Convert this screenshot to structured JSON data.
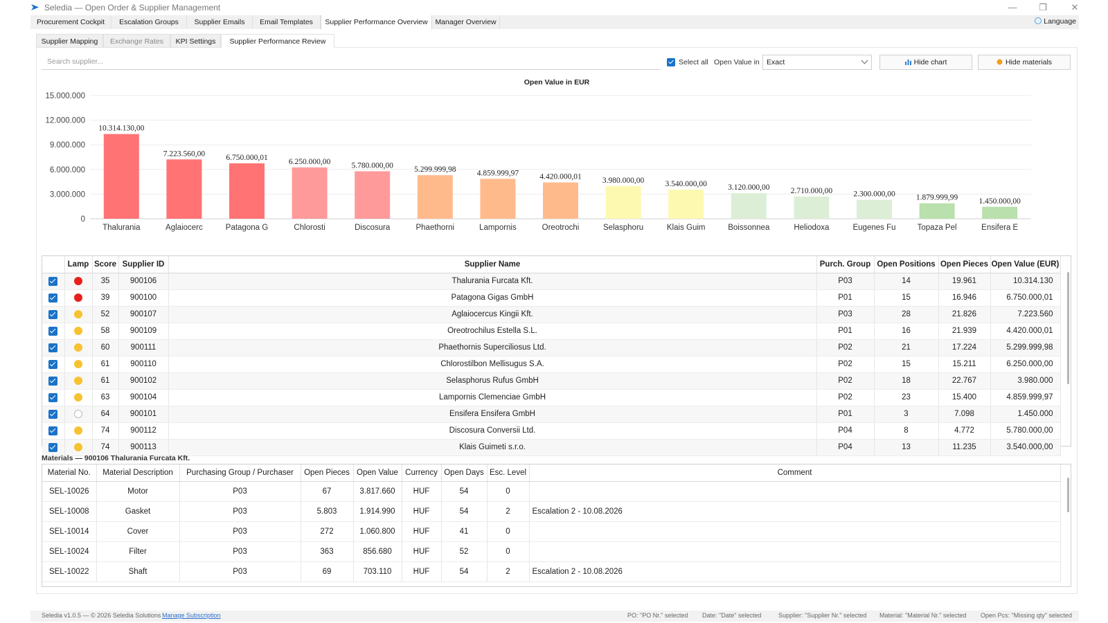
{
  "window": {
    "title": "Seledia — Open Order & Supplier Management",
    "minimize": "—",
    "maximize": "❐",
    "close": "✕",
    "colors": {
      "logo": "#1a73c9"
    }
  },
  "top_tabs": {
    "items": [
      {
        "label": "Procurement Cockpit",
        "active": false
      },
      {
        "label": "Escalation Groups",
        "active": false
      },
      {
        "label": "Supplier Emails",
        "active": false
      },
      {
        "label": "Email Templates",
        "active": false
      },
      {
        "label": "Supplier Performance Overview",
        "active": true
      },
      {
        "label": "Manager Overview",
        "active": false
      }
    ],
    "language": "Language",
    "language_icon": "globe-icon"
  },
  "sub_tabs": {
    "items": [
      {
        "label": "Supplier Mapping",
        "active": false,
        "disabled": false
      },
      {
        "label": "Exchange Rates",
        "active": false,
        "disabled": true
      },
      {
        "label": "KPI Settings",
        "active": false,
        "disabled": false
      },
      {
        "label": "Supplier Performance Review",
        "active": true,
        "disabled": false
      }
    ]
  },
  "toolbar": {
    "search_placeholder": "Search supplier...",
    "select_all": "Select all",
    "select_all_checked": true,
    "open_value_in": "Open Value in",
    "open_value_mode": "Exact",
    "hide_chart": "Hide chart",
    "hide_chart_icon": "bar-chart-icon",
    "hide_materials": "Hide materials",
    "hide_materials_icon": "box-icon"
  },
  "chart_data": {
    "type": "bar",
    "title": "Open Value in EUR",
    "xlabel": "",
    "ylabel": "",
    "ylim": [
      0,
      15000000
    ],
    "yticks": [
      0,
      3000000,
      6000000,
      9000000,
      12000000,
      15000000
    ],
    "ytick_labels": [
      "0",
      "3.000.000",
      "6.000.000",
      "9.000.000",
      "12.000.000",
      "15.000.000"
    ],
    "grid": true,
    "legend": "none",
    "categories": [
      "Thalurania",
      "Aglaiocerc",
      "Patagona G",
      "Chlorosti",
      "Discosura",
      "Phaethorni",
      "Lampornis",
      "Oreotrochi",
      "Selasphoru",
      "Klais Guim",
      "Boissonnea",
      "Heliodoxa",
      "Eugenes Fu",
      "Topaza Pel",
      "Ensifera E"
    ],
    "values": [
      10314130.0,
      7223560.0,
      6750000.01,
      6250000.0,
      5780000.0,
      5299999.98,
      4859999.97,
      4420000.01,
      3980000.0,
      3540000.0,
      3120000.0,
      2710000.0,
      2300000.0,
      1879999.99,
      1450000.0
    ],
    "value_labels": [
      "10.314.130,00",
      "7.223.560,00",
      "6.750.000,01",
      "6.250.000,00",
      "5.780.000,00",
      "5.299.999,98",
      "4.859.999,97",
      "4.420.000,01",
      "3.980.000,00",
      "3.540.000,00",
      "3.120.000,00",
      "2.710.000,00",
      "2.300.000,00",
      "1.879.999,99",
      "1.450.000,00"
    ],
    "colors": [
      "#ff7375",
      "#ff7375",
      "#ff7375",
      "#ff9a9b",
      "#ff9a9b",
      "#ffba8c",
      "#ffba8c",
      "#ffba8c",
      "#fdf9b0",
      "#fdf9b0",
      "#dcefd6",
      "#dcefd6",
      "#dcefd6",
      "#b9e0ad",
      "#b9e0ad"
    ]
  },
  "supplier_table": {
    "columns": [
      "",
      "Lamp",
      "Score",
      "Supplier ID",
      "Supplier Name",
      "Purch. Group",
      "Open Positions",
      "Open Pieces",
      "Open Value (EUR)"
    ],
    "rows": [
      {
        "checked": true,
        "lamp": "#e8201d",
        "score": "35",
        "id": "900106",
        "name": "Thalurania Furcata Kft.",
        "group": "P03",
        "positions": "14",
        "pieces": "19.961",
        "value": "10.314.130"
      },
      {
        "checked": true,
        "lamp": "#e8201d",
        "score": "39",
        "id": "900100",
        "name": "Patagona Gigas GmbH",
        "group": "P01",
        "positions": "15",
        "pieces": "16.946",
        "value": "6.750.000,01"
      },
      {
        "checked": true,
        "lamp": "#f7c230",
        "score": "52",
        "id": "900107",
        "name": "Aglaiocercus Kingii Kft.",
        "group": "P03",
        "positions": "28",
        "pieces": "21.826",
        "value": "7.223.560"
      },
      {
        "checked": true,
        "lamp": "#f7c230",
        "score": "58",
        "id": "900109",
        "name": "Oreotrochilus Estella S.L.",
        "group": "P01",
        "positions": "16",
        "pieces": "21.939",
        "value": "4.420.000,01"
      },
      {
        "checked": true,
        "lamp": "#f7c230",
        "score": "60",
        "id": "900111",
        "name": "Phaethornis Superciliosus Ltd.",
        "group": "P02",
        "positions": "21",
        "pieces": "17.224",
        "value": "5.299.999,98"
      },
      {
        "checked": true,
        "lamp": "#f7c230",
        "score": "61",
        "id": "900110",
        "name": "Chlorostilbon Mellisugus S.A.",
        "group": "P02",
        "positions": "15",
        "pieces": "15.211",
        "value": "6.250.000,00"
      },
      {
        "checked": true,
        "lamp": "#f7c230",
        "score": "61",
        "id": "900102",
        "name": "Selasphorus Rufus GmbH",
        "group": "P02",
        "positions": "18",
        "pieces": "22.767",
        "value": "3.980.000"
      },
      {
        "checked": true,
        "lamp": "#f7c230",
        "score": "63",
        "id": "900104",
        "name": "Lampornis Clemenciae GmbH",
        "group": "P02",
        "positions": "23",
        "pieces": "15.400",
        "value": "4.859.999,97"
      },
      {
        "checked": true,
        "lamp": "#ffffff",
        "score": "64",
        "id": "900101",
        "name": "Ensifera Ensifera GmbH",
        "group": "P01",
        "positions": "3",
        "pieces": "7.098",
        "value": "1.450.000"
      },
      {
        "checked": true,
        "lamp": "#f7c230",
        "score": "74",
        "id": "900112",
        "name": "Discosura Conversii Ltd.",
        "group": "P04",
        "positions": "8",
        "pieces": "4.772",
        "value": "5.780.000,00"
      },
      {
        "checked": true,
        "lamp": "#f7c230",
        "score": "74",
        "id": "900113",
        "name": "Klais Guimeti s.r.o.",
        "group": "P04",
        "positions": "13",
        "pieces": "11.235",
        "value": "3.540.000,00"
      }
    ]
  },
  "materials": {
    "caption": "Materials — 900106  Thalurania Furcata Kft.",
    "columns": [
      "Material No.",
      "Material Description",
      "Purchasing Group / Purchaser",
      "Open Pieces",
      "Open Value",
      "Currency",
      "Open Days",
      "Esc. Level",
      "Comment"
    ],
    "rows": [
      {
        "no": "SEL-10026",
        "desc": "Motor",
        "group": "P03",
        "pieces": "67",
        "value": "3.817.660",
        "currency": "HUF",
        "days": "54",
        "esc": "0",
        "comment": ""
      },
      {
        "no": "SEL-10008",
        "desc": "Gasket",
        "group": "P03",
        "pieces": "5.803",
        "value": "1.914.990",
        "currency": "HUF",
        "days": "54",
        "esc": "2",
        "comment": "Escalation 2 - 10.08.2026"
      },
      {
        "no": "SEL-10014",
        "desc": "Cover",
        "group": "P03",
        "pieces": "272",
        "value": "1.060.800",
        "currency": "HUF",
        "days": "41",
        "esc": "0",
        "comment": ""
      },
      {
        "no": "SEL-10024",
        "desc": "Filter",
        "group": "P03",
        "pieces": "363",
        "value": "856.680",
        "currency": "HUF",
        "days": "52",
        "esc": "0",
        "comment": ""
      },
      {
        "no": "SEL-10022",
        "desc": "Shaft",
        "group": "P03",
        "pieces": "69",
        "value": "703.110",
        "currency": "HUF",
        "days": "54",
        "esc": "2",
        "comment": "Escalation 2 - 10.08.2026"
      }
    ]
  },
  "status_bar": {
    "version": "Seledia v1.0.5 — © 2026 Seledia Solutions",
    "manage_link": "Manage Subscription",
    "po": "PO: \"PO Nr.\" selected",
    "date": "Date: \"Date\" selected",
    "supplier": "Supplier: \"Supplier Nr.\" selected",
    "material": "Material: \"Material Nr.\" selected",
    "open_pcs": "Open Pcs: \"Missing qty\" selected"
  }
}
